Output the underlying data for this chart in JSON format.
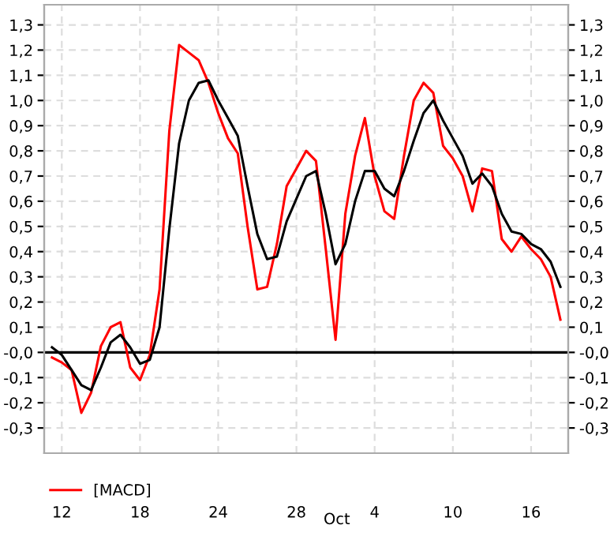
{
  "chart_data": {
    "type": "line",
    "annotations": [
      "Oct"
    ],
    "legend": "bottom",
    "grid": true,
    "marker": "none",
    "line_style": "solid",
    "categories": [
      null,
      "12",
      null,
      null,
      null,
      null,
      null,
      null,
      null,
      "18",
      null,
      null,
      null,
      null,
      null,
      null,
      null,
      "24",
      null,
      null,
      null,
      null,
      null,
      null,
      null,
      "28",
      null,
      null,
      null,
      null,
      null,
      null,
      null,
      "4",
      null,
      null,
      null,
      null,
      null,
      null,
      null,
      "10",
      null,
      null,
      null,
      null,
      null,
      null,
      null,
      "16",
      null,
      null,
      null
    ],
    "ylim": [
      -0.4,
      1.38
    ],
    "yticks": [
      {
        "value": -0.3,
        "label": "-0,3"
      },
      {
        "value": -0.2,
        "label": "-0,2"
      },
      {
        "value": -0.1,
        "label": "-0,1"
      },
      {
        "value": 0,
        "label": "-0,0"
      },
      {
        "value": 0.1,
        "label": "0,1"
      },
      {
        "value": 0.2,
        "label": "0,2"
      },
      {
        "value": 0.3,
        "label": "0,3"
      },
      {
        "value": 0.4,
        "label": "0,4"
      },
      {
        "value": 0.5,
        "label": "0,5"
      },
      {
        "value": 0.6,
        "label": "0,6"
      },
      {
        "value": 0.7,
        "label": "0,7"
      },
      {
        "value": 0.8,
        "label": "0,8"
      },
      {
        "value": 0.9,
        "label": "0,9"
      },
      {
        "value": 1.0,
        "label": "1,0"
      },
      {
        "value": 1.1,
        "label": "1,1"
      },
      {
        "value": 1.2,
        "label": "1,2"
      },
      {
        "value": 1.3,
        "label": "1,3"
      }
    ],
    "y2lim": [
      -0.4,
      1.38
    ],
    "y2ticks": [
      {
        "value": -0.3,
        "label": "-0,3"
      },
      {
        "value": -0.2,
        "label": "-0,2"
      },
      {
        "value": -0.1,
        "label": "-0,1"
      },
      {
        "value": 0,
        "label": "-0,0"
      },
      {
        "value": 0.1,
        "label": "0,1"
      },
      {
        "value": 0.2,
        "label": "0,2"
      },
      {
        "value": 0.3,
        "label": "0,3"
      },
      {
        "value": 0.4,
        "label": "0,4"
      },
      {
        "value": 0.5,
        "label": "0,5"
      },
      {
        "value": 0.6,
        "label": "0,6"
      },
      {
        "value": 0.7,
        "label": "0,7"
      },
      {
        "value": 0.8,
        "label": "0,8"
      },
      {
        "value": 0.9,
        "label": "0,9"
      },
      {
        "value": 1.0,
        "label": "1,0"
      },
      {
        "value": 1.1,
        "label": "1,1"
      },
      {
        "value": 1.2,
        "label": "1,2"
      },
      {
        "value": 1.3,
        "label": "1,3"
      }
    ],
    "ref_lines": [
      {
        "axis": "y",
        "value": 0,
        "color": "#000000"
      }
    ],
    "series": [
      {
        "name": "[MACD]",
        "color": "#ff0000",
        "values": [
          -0.02,
          -0.04,
          -0.07,
          -0.24,
          -0.16,
          0.025,
          0.1,
          0.12,
          -0.06,
          -0.11,
          -0.01,
          0.25,
          0.88,
          1.22,
          1.19,
          1.16,
          1.07,
          0.95,
          0.85,
          0.79,
          0.5,
          0.25,
          0.26,
          0.43,
          0.66,
          0.73,
          0.8,
          0.76,
          0.41,
          0.05,
          0.55,
          0.78,
          0.93,
          0.7,
          0.56,
          0.53,
          0.78,
          1.0,
          1.07,
          1.03,
          0.82,
          0.77,
          0.7,
          0.56,
          0.73,
          0.72,
          0.45,
          0.4,
          0.46,
          0.41,
          0.37,
          0.3,
          0.13
        ]
      },
      {
        "color": "#000000",
        "values": [
          0.02,
          -0.01,
          -0.07,
          -0.13,
          -0.15,
          -0.06,
          0.04,
          0.07,
          0.02,
          -0.045,
          -0.03,
          0.1,
          0.49,
          0.83,
          1.0,
          1.07,
          1.08,
          1.0,
          0.93,
          0.86,
          0.66,
          0.47,
          0.37,
          0.38,
          0.52,
          0.61,
          0.7,
          0.72,
          0.55,
          0.35,
          0.43,
          0.6,
          0.72,
          0.72,
          0.65,
          0.62,
          0.72,
          0.84,
          0.95,
          1.0,
          0.92,
          0.85,
          0.78,
          0.67,
          0.71,
          0.66,
          0.55,
          0.48,
          0.47,
          0.43,
          0.41,
          0.36,
          0.26
        ]
      }
    ]
  }
}
